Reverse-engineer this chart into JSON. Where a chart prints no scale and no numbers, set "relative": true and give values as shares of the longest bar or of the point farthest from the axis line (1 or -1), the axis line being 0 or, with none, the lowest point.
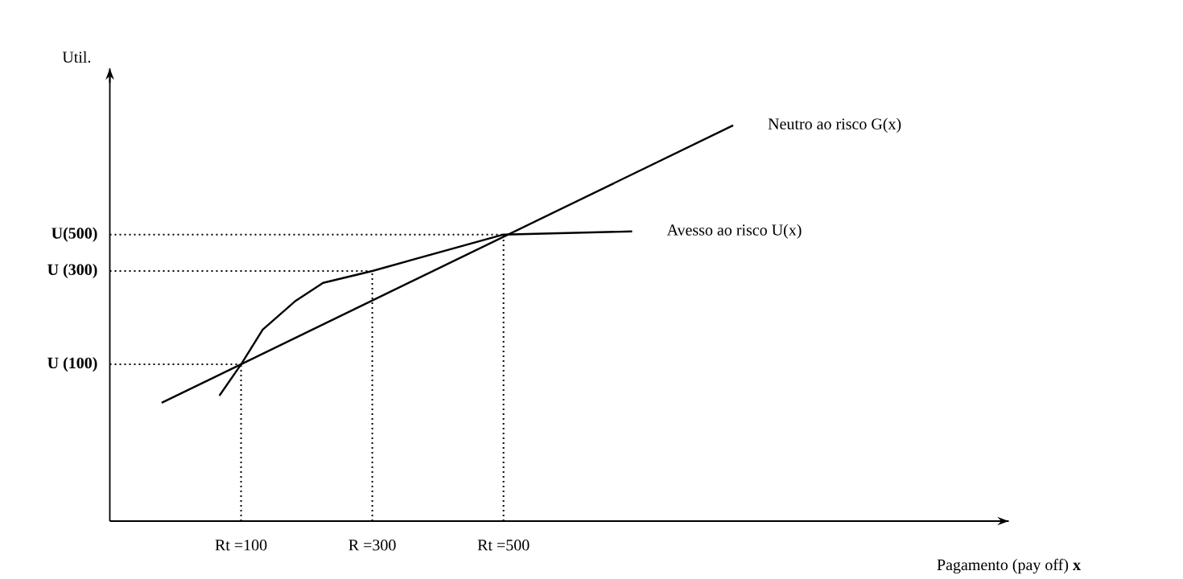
{
  "chart_data": {
    "type": "line",
    "relative": true,
    "xlabel": "Pagamento (pay off) **x**",
    "ylabel": "Util.",
    "xlim": [
      -100,
      1270
    ],
    "xticks": [
      {
        "value": 100,
        "label": "Rt =100"
      },
      {
        "value": 300,
        "label": "R =300"
      },
      {
        "value": 500,
        "label": "Rt =500"
      }
    ],
    "legend": false,
    "line_style": "solid",
    "marker": "none",
    "series": [
      {
        "name": "Neutro ao risco G(x)",
        "color": "#000000",
        "x": [
          -21,
          850
        ],
        "values": [
          0.299,
          1
        ]
      },
      {
        "name": "Avesso ao risco U(x)",
        "color": "#000000",
        "x": [
          67,
          100,
          133,
          182,
          225,
          300,
          500,
          696
        ],
        "values": [
          0.317,
          0.396,
          0.484,
          0.555,
          0.602,
          0.632,
          0.724,
          0.732
        ]
      }
    ],
    "ref_lines": [
      {
        "axis": "y",
        "value": 0.724,
        "label": "U(500)",
        "line_style": "dotted"
      },
      {
        "axis": "y",
        "value": 0.632,
        "label": "U (300)",
        "line_style": "dotted"
      },
      {
        "axis": "y",
        "value": 0.396,
        "label": "U (100)",
        "line_style": "dotted"
      },
      {
        "axis": "x",
        "value": 100,
        "line_style": "dotted"
      },
      {
        "axis": "x",
        "value": 300,
        "line_style": "dotted"
      },
      {
        "axis": "x",
        "value": 500,
        "line_style": "dotted"
      }
    ]
  }
}
